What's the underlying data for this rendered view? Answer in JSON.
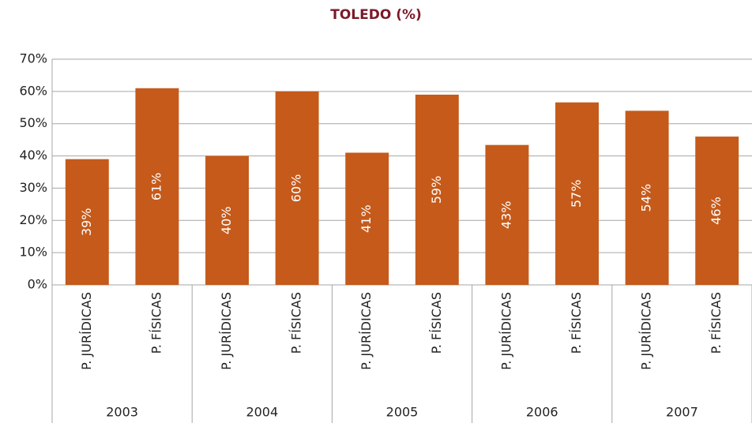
{
  "chart_data": {
    "type": "bar",
    "title": "TOLEDO (%)",
    "groups": [
      "2003",
      "2004",
      "2005",
      "2006",
      "2007"
    ],
    "categories": [
      "P. JURÍDICAS",
      "P. FÍSICAS",
      "P. JURÍDICAS",
      "P. FÍSICAS",
      "P. JURÍDICAS",
      "P. FÍSICAS",
      "P. JURÍDICAS",
      "P. FÍSICAS",
      "P. JURÍDICAS",
      "P. FÍSICAS"
    ],
    "values": [
      39,
      61,
      40,
      60,
      41,
      59,
      43.4,
      56.6,
      54,
      46
    ],
    "value_labels": [
      "39%",
      "61%",
      "40%",
      "60%",
      "41%",
      "59%",
      "43%",
      "57%",
      "54%",
      "46%"
    ],
    "color": "#c55a1a",
    "ylim": [
      0,
      70
    ],
    "yticks": [
      {
        "value": 0,
        "label": "0%"
      },
      {
        "value": 10,
        "label": "10%"
      },
      {
        "value": 20,
        "label": "20%"
      },
      {
        "value": 30,
        "label": "30%"
      },
      {
        "value": 40,
        "label": "40%"
      },
      {
        "value": 50,
        "label": "50%"
      },
      {
        "value": 60,
        "label": "60%"
      },
      {
        "value": 70,
        "label": "70%"
      }
    ],
    "grid": true
  }
}
